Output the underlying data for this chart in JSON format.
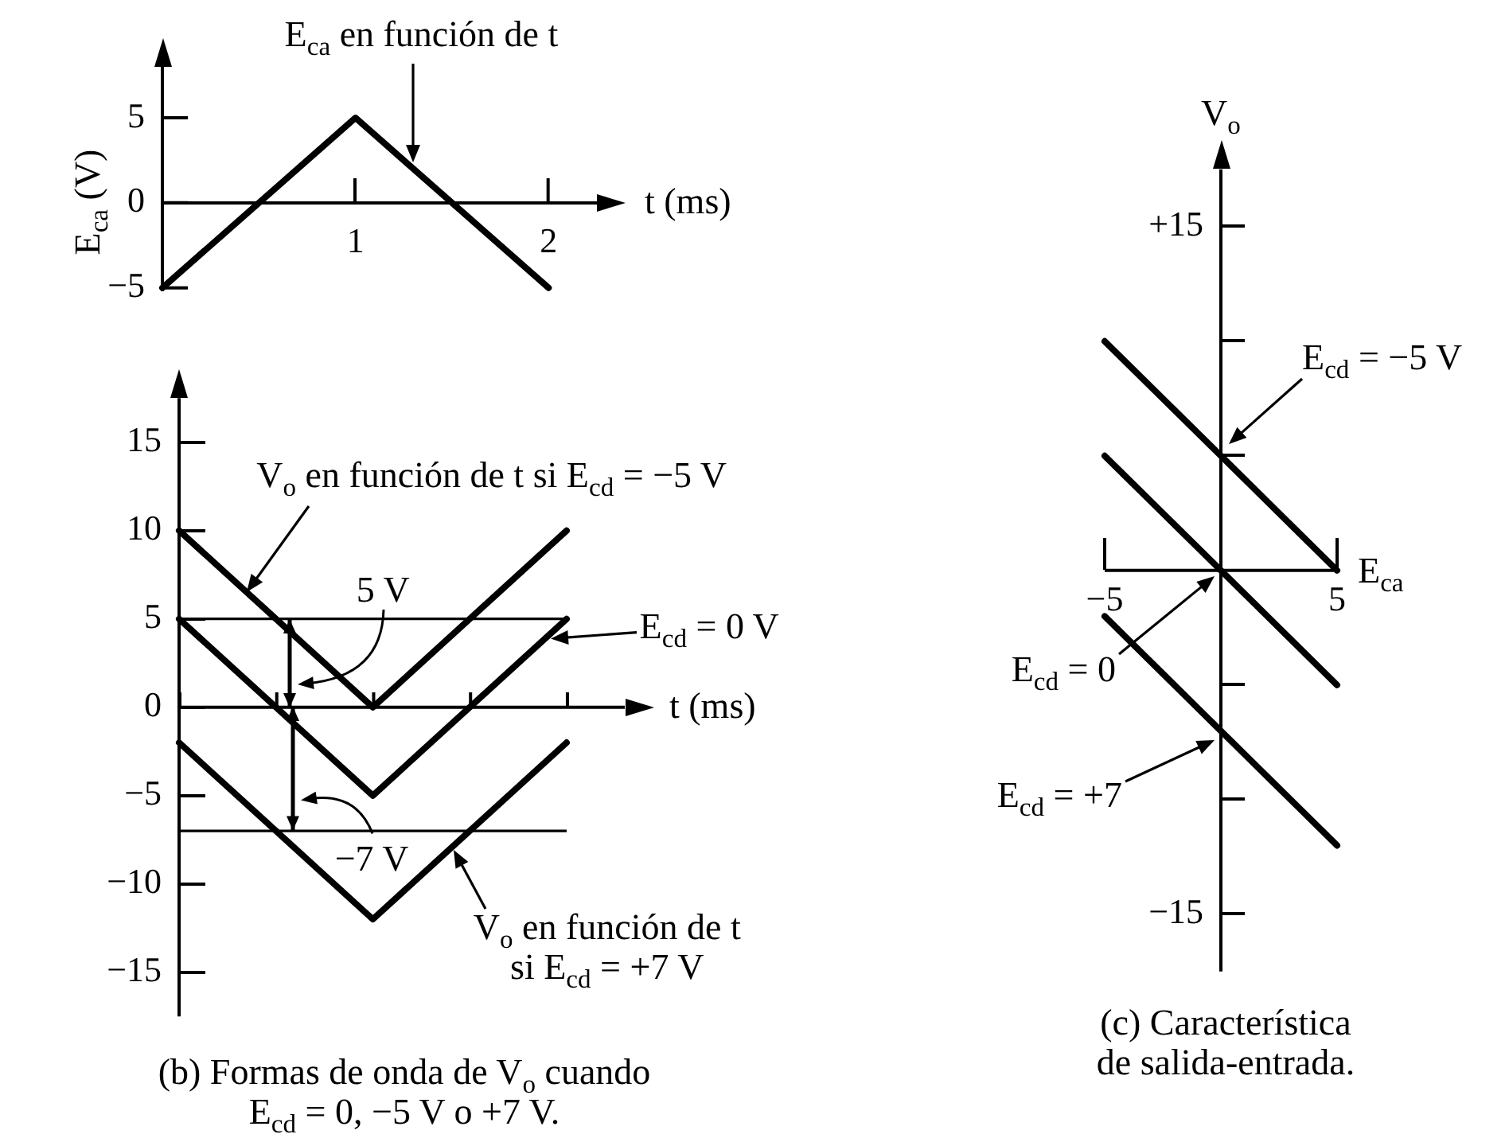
{
  "chart_data": [
    {
      "type": "line",
      "x": [
        0,
        1,
        2
      ],
      "series": [
        {
          "color": "#000000",
          "values": [
            -5,
            5,
            -5
          ]
        }
      ],
      "xlabel": "t (ms)",
      "ylabel": "E$_{ca}$ (V)",
      "xlim": [
        0,
        2.25
      ],
      "xticks": [
        1,
        2
      ],
      "ylim": [
        -5.2,
        8
      ],
      "yticks": [
        -5,
        0,
        5
      ],
      "annotations": [
        "E$_{ca}$ en función de t"
      ]
    },
    {
      "type": "line",
      "categories": [
        null,
        null,
        null
      ],
      "series": [
        {
          "color": "#000000",
          "values": [
            10,
            0,
            10
          ]
        },
        {
          "color": "#000000",
          "values": [
            5,
            -5,
            5
          ]
        },
        {
          "color": "#000000",
          "values": [
            -2,
            -12,
            -2
          ]
        }
      ],
      "xlabel": "t (ms)",
      "ylim": [
        -17.5,
        17.5
      ],
      "yticks": [
        15,
        10,
        5,
        0,
        -5,
        -10,
        -15
      ],
      "ref_lines": [
        {
          "axis": "y",
          "value": 5,
          "color": "#000000"
        },
        {
          "axis": "y",
          "value": -7,
          "color": "#000000"
        }
      ],
      "annotations": [
        {
          "text": "V$_{o}$ en función de t si E$_{cd}$ = −5 V",
          "y": 6.5
        },
        {
          "text": "5 V",
          "y": 5
        },
        "E$_{cd}$ = 0 V",
        {
          "text": "−7 V",
          "y": -7
        },
        "V$_{o}$ en función de t\nsi E$_{cd}$ = +7 V",
        "(b) Formas de onda de V$_{o}$ cuando\nE$_{cd}$ = 0, −5 V o +7 V."
      ]
    },
    {
      "type": "line",
      "x": [
        -5,
        5
      ],
      "series": [
        {
          "color": "#000000",
          "values": [
            10,
            0
          ]
        },
        {
          "color": "#000000",
          "values": [
            5,
            -5
          ]
        },
        {
          "color": "#000000",
          "values": [
            -2,
            -12
          ]
        }
      ],
      "xlabel": "E$_{ca}$",
      "ylabel": "V$_{o}$",
      "xlim": [
        -5,
        5
      ],
      "xticks": [
        -5,
        5
      ],
      "ylim": [
        -17.5,
        17.5
      ],
      "yticks": [
        {
          "value": 15,
          "label": "+15"
        },
        {
          "value": 10,
          "label": null
        },
        {
          "value": 5,
          "label": null
        },
        {
          "value": -5,
          "label": null
        },
        {
          "value": -10,
          "label": null
        },
        -15
      ],
      "annotations": [
        "E$_{cd}$ = −5 V",
        "E$_{cd}$ = 0",
        "E$_{cd}$ = +7",
        "(c) Característica\nde salida-entrada."
      ]
    }
  ]
}
